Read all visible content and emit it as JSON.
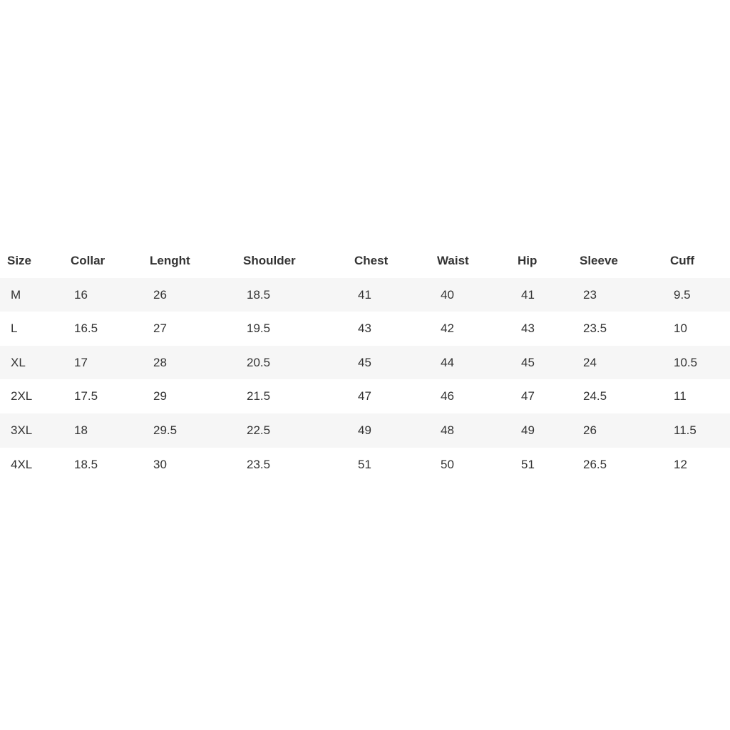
{
  "table": {
    "headers": [
      "Size",
      "Collar",
      "Lenght",
      "Shoulder",
      "Chest",
      "Waist",
      "Hip",
      "Sleeve",
      "Cuff"
    ],
    "rows": [
      [
        "M",
        "16",
        "26",
        "18.5",
        "41",
        "40",
        "41",
        "23",
        "9.5"
      ],
      [
        "L",
        "16.5",
        "27",
        "19.5",
        "43",
        "42",
        "43",
        "23.5",
        "10"
      ],
      [
        "XL",
        "17",
        "28",
        "20.5",
        "45",
        "44",
        "45",
        "24",
        "10.5"
      ],
      [
        "2XL",
        "17.5",
        "29",
        "21.5",
        "47",
        "46",
        "47",
        "24.5",
        "11"
      ],
      [
        "3XL",
        "18",
        "29.5",
        "22.5",
        "49",
        "48",
        "49",
        "26",
        "11.5"
      ],
      [
        "4XL",
        "18.5",
        "30",
        "23.5",
        "51",
        "50",
        "51",
        "26.5",
        "12"
      ]
    ]
  }
}
